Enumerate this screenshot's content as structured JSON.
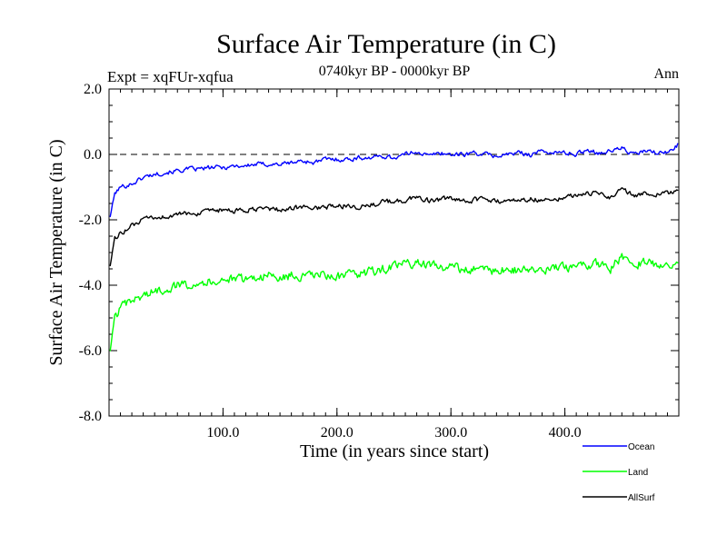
{
  "chart_data": {
    "type": "line",
    "title": "Surface Air Temperature (in C)",
    "subtitle": "0740kyr BP - 0000kyr BP",
    "left_annotation": "Expt = xqFUr-xqfua",
    "right_annotation": "Ann",
    "xlabel": "Time (in years since start)",
    "ylabel": "Surface Air Temperature (in C)",
    "xlim": [
      0,
      500
    ],
    "ylim": [
      -8.0,
      2.0
    ],
    "x_ticks": [
      100,
      200,
      300,
      400
    ],
    "x_tick_labels": [
      "100.0",
      "200.0",
      "300.0",
      "400.0"
    ],
    "y_ticks": [
      2,
      0,
      -2,
      -4,
      -6,
      -8
    ],
    "y_tick_labels": [
      "2.0",
      "0.0",
      "-2.0",
      "-4.0",
      "-6.0",
      "-8.0"
    ],
    "reference_line": 0.0,
    "legend_position": "bottom-right",
    "series": [
      {
        "name": "Ocean",
        "color": "#0000ff",
        "x": [
          1,
          5,
          10,
          20,
          30,
          40,
          50,
          60,
          70,
          80,
          90,
          100,
          110,
          120,
          130,
          140,
          150,
          160,
          170,
          180,
          190,
          200,
          210,
          220,
          230,
          240,
          250,
          260,
          270,
          280,
          290,
          300,
          310,
          320,
          330,
          340,
          350,
          360,
          370,
          380,
          390,
          400,
          410,
          420,
          430,
          440,
          450,
          460,
          470,
          480,
          490,
          499
        ],
        "values": [
          -1.9,
          -1.2,
          -1.0,
          -0.9,
          -0.7,
          -0.6,
          -0.55,
          -0.5,
          -0.45,
          -0.45,
          -0.4,
          -0.4,
          -0.35,
          -0.35,
          -0.3,
          -0.3,
          -0.3,
          -0.25,
          -0.2,
          -0.25,
          -0.15,
          -0.15,
          -0.15,
          -0.1,
          -0.1,
          -0.05,
          -0.1,
          0.0,
          0.1,
          -0.05,
          0.05,
          0.0,
          0.0,
          0.05,
          0.0,
          -0.05,
          0.0,
          0.05,
          0.0,
          0.1,
          0.05,
          0.05,
          0.0,
          0.15,
          0.05,
          0.1,
          0.2,
          0.0,
          0.1,
          0.05,
          0.05,
          0.3
        ]
      },
      {
        "name": "Land",
        "color": "#00ff00",
        "x": [
          1,
          5,
          10,
          20,
          30,
          40,
          50,
          60,
          70,
          80,
          90,
          100,
          110,
          120,
          130,
          140,
          150,
          160,
          170,
          180,
          190,
          200,
          210,
          220,
          230,
          240,
          250,
          260,
          270,
          280,
          290,
          300,
          310,
          320,
          330,
          340,
          350,
          360,
          370,
          380,
          390,
          400,
          410,
          420,
          430,
          440,
          450,
          460,
          470,
          480,
          490,
          499
        ],
        "values": [
          -6.0,
          -5.0,
          -4.7,
          -4.5,
          -4.3,
          -4.2,
          -4.1,
          -4.0,
          -3.95,
          -3.9,
          -3.9,
          -3.8,
          -3.85,
          -3.8,
          -3.75,
          -3.7,
          -3.8,
          -3.7,
          -3.75,
          -3.7,
          -3.7,
          -3.75,
          -3.7,
          -3.65,
          -3.6,
          -3.5,
          -3.45,
          -3.35,
          -3.3,
          -3.4,
          -3.45,
          -3.4,
          -3.55,
          -3.5,
          -3.45,
          -3.6,
          -3.5,
          -3.55,
          -3.5,
          -3.6,
          -3.5,
          -3.45,
          -3.4,
          -3.4,
          -3.35,
          -3.5,
          -3.1,
          -3.35,
          -3.3,
          -3.35,
          -3.3,
          -3.45
        ]
      },
      {
        "name": "AllSurf",
        "color": "#000000",
        "x": [
          1,
          5,
          10,
          20,
          30,
          40,
          50,
          60,
          70,
          80,
          90,
          100,
          110,
          120,
          130,
          140,
          150,
          160,
          170,
          180,
          190,
          200,
          210,
          220,
          230,
          240,
          250,
          260,
          270,
          280,
          290,
          300,
          310,
          320,
          330,
          340,
          350,
          360,
          370,
          380,
          390,
          400,
          410,
          420,
          430,
          440,
          450,
          460,
          470,
          480,
          490,
          499
        ],
        "values": [
          -3.4,
          -2.6,
          -2.4,
          -2.2,
          -2.0,
          -1.95,
          -1.9,
          -1.85,
          -1.8,
          -1.8,
          -1.75,
          -1.7,
          -1.75,
          -1.7,
          -1.7,
          -1.65,
          -1.7,
          -1.65,
          -1.6,
          -1.65,
          -1.6,
          -1.6,
          -1.55,
          -1.6,
          -1.55,
          -1.45,
          -1.45,
          -1.4,
          -1.3,
          -1.4,
          -1.4,
          -1.35,
          -1.45,
          -1.4,
          -1.35,
          -1.45,
          -1.4,
          -1.4,
          -1.35,
          -1.4,
          -1.35,
          -1.3,
          -1.25,
          -1.2,
          -1.2,
          -1.3,
          -1.05,
          -1.25,
          -1.2,
          -1.2,
          -1.2,
          -1.15
        ]
      }
    ]
  }
}
